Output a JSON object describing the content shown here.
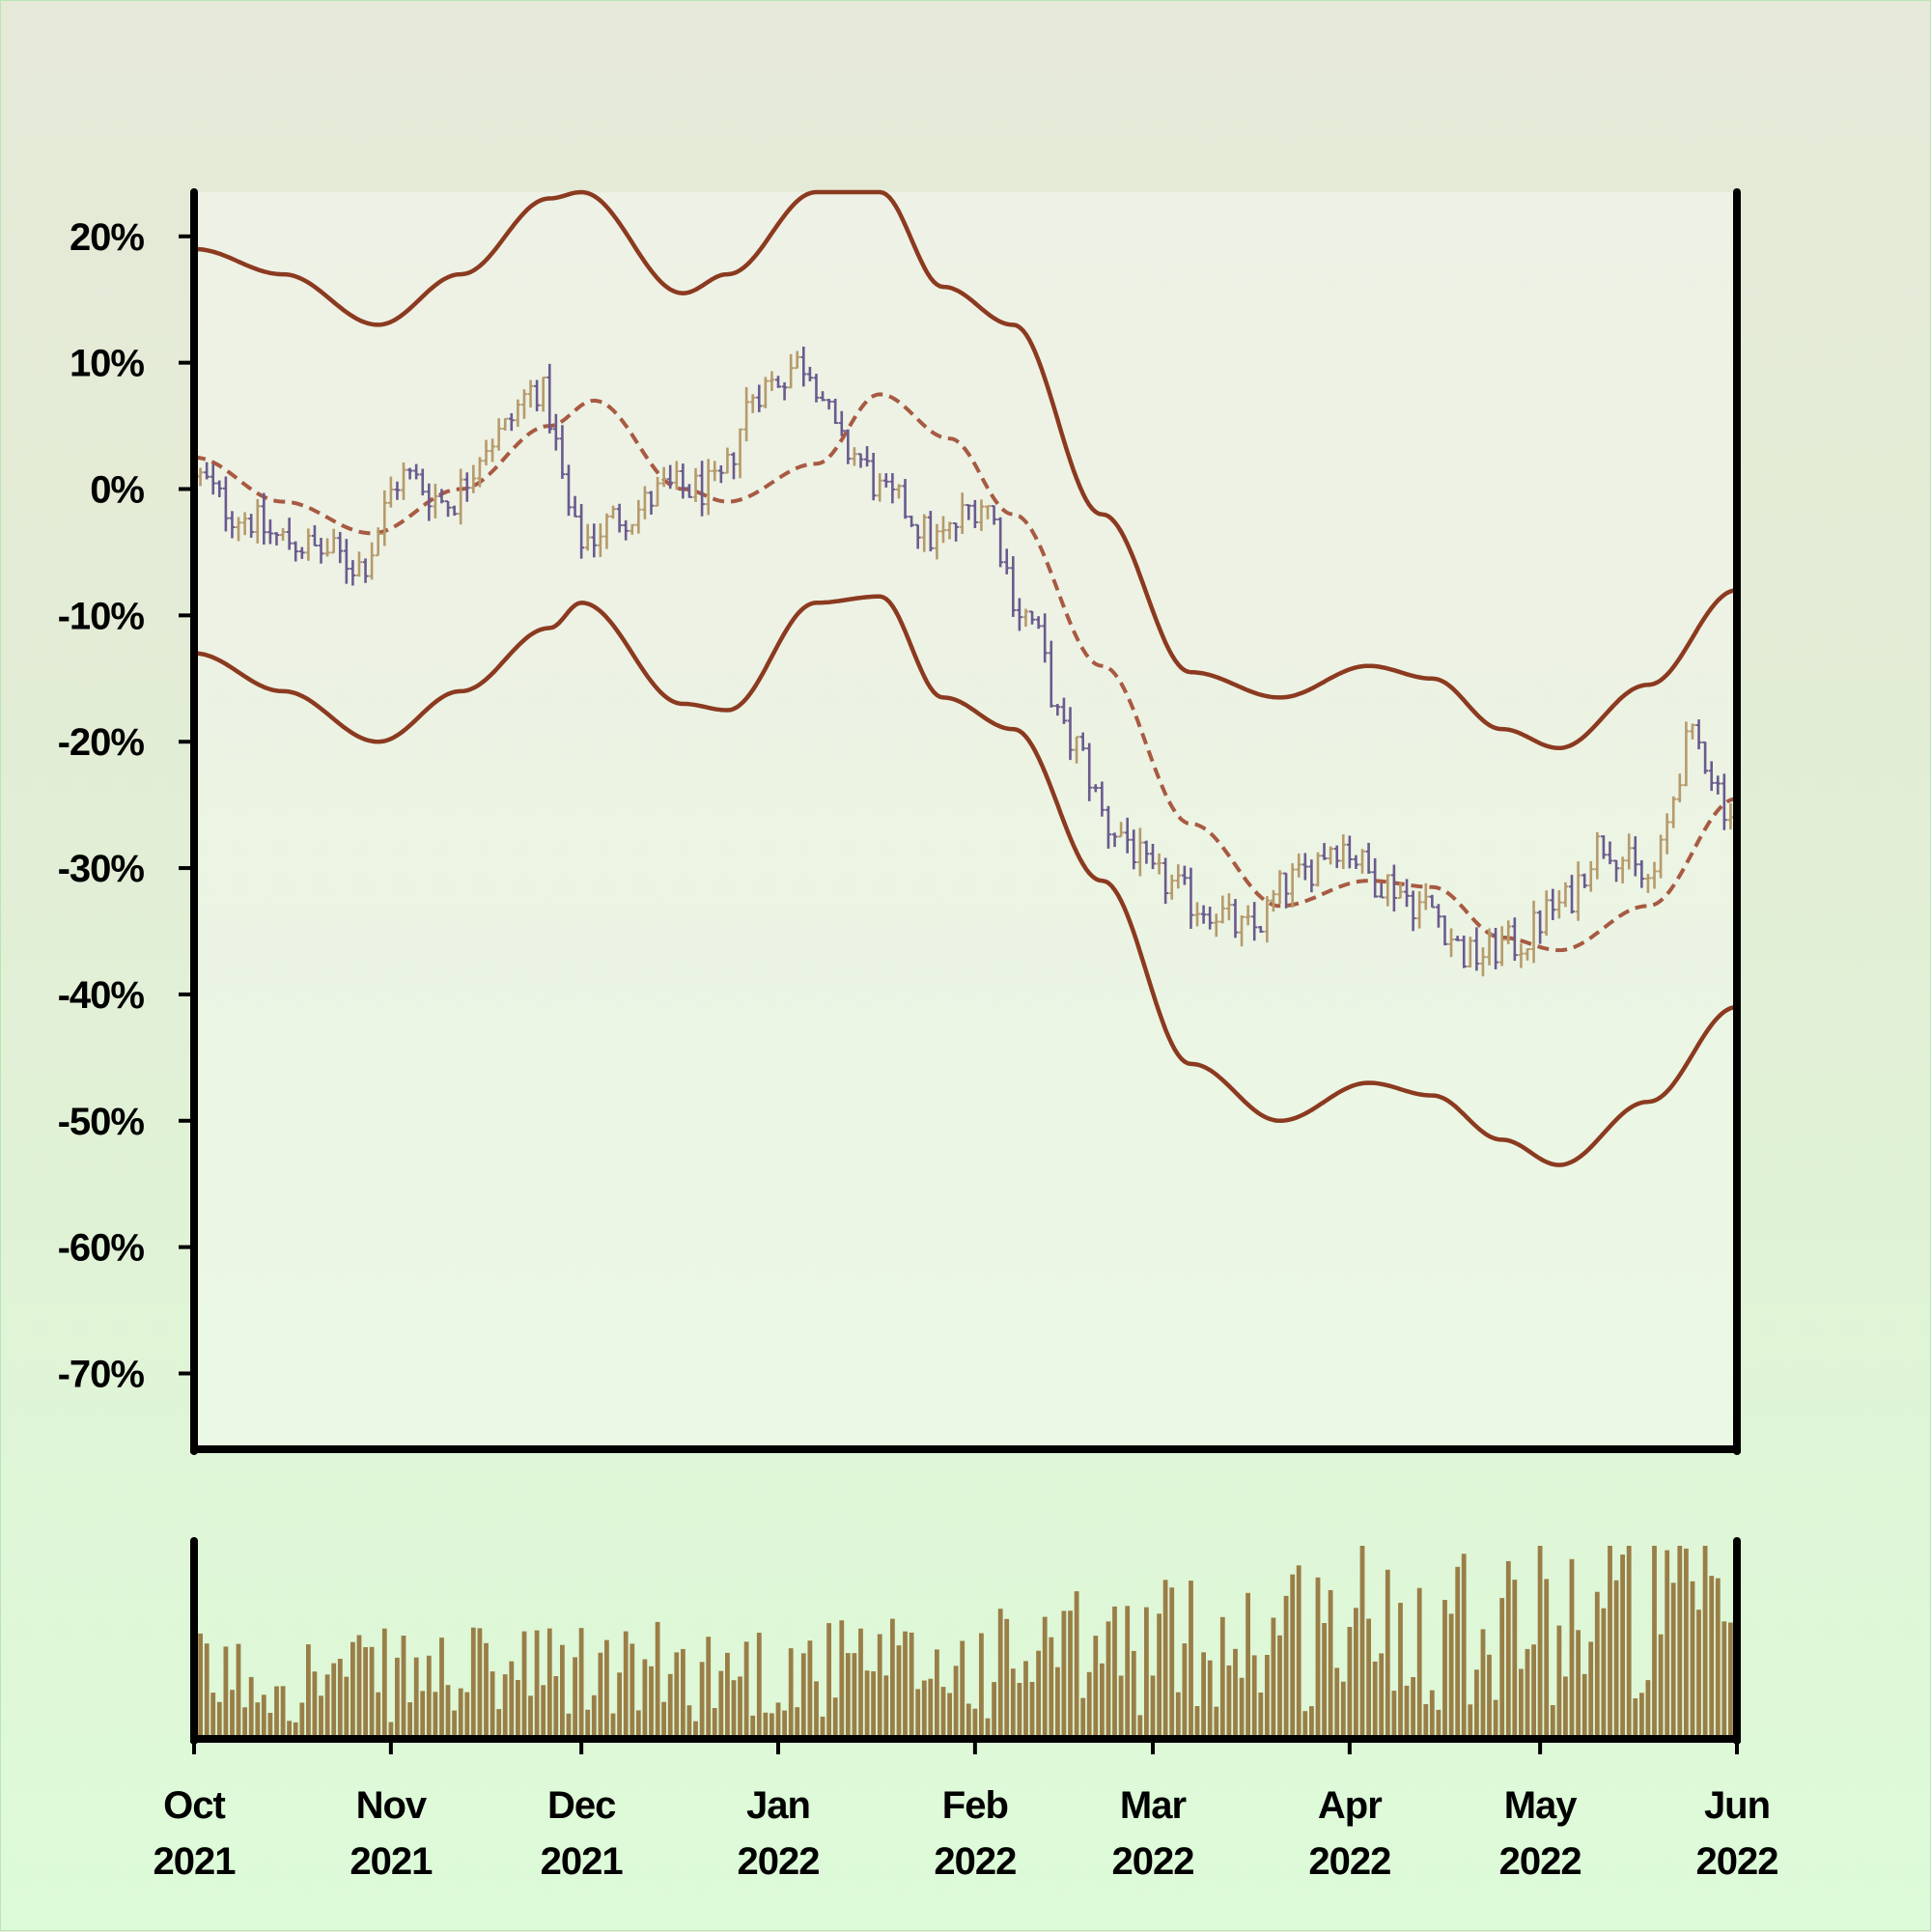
{
  "chart_data": {
    "type": "candlestick",
    "y_axis": {
      "ticks": [
        "20%",
        "10%",
        "0%",
        "-10%",
        "-20%",
        "-30%",
        "-40%",
        "-50%",
        "-60%",
        "-70%"
      ],
      "tick_values": [
        20,
        10,
        0,
        -10,
        -20,
        -30,
        -40,
        -50,
        -60,
        -70
      ],
      "range": [
        -76,
        23.5
      ],
      "unit": "%"
    },
    "x_axis": {
      "ticks": [
        {
          "month": "Oct",
          "year": "2021",
          "date": "2021-10-01"
        },
        {
          "month": "Nov",
          "year": "2021",
          "date": "2021-11-01"
        },
        {
          "month": "Dec",
          "year": "2021",
          "date": "2021-12-01"
        },
        {
          "month": "Jan",
          "year": "2022",
          "date": "2022-01-01"
        },
        {
          "month": "Feb",
          "year": "2022",
          "date": "2022-02-01"
        },
        {
          "month": "Mar",
          "year": "2022",
          "date": "2022-03-01"
        },
        {
          "month": "Apr",
          "year": "2022",
          "date": "2022-04-01"
        },
        {
          "month": "May",
          "year": "2022",
          "date": "2022-05-01"
        },
        {
          "month": "Jun",
          "year": "2022",
          "date": "2022-06-01"
        }
      ],
      "range": [
        "2021-10-01",
        "2022-06-01"
      ]
    },
    "price_trend": {
      "dates": [
        "2021-10-01",
        "2021-10-08",
        "2021-10-15",
        "2021-10-22",
        "2021-10-27",
        "2021-11-03",
        "2021-11-10",
        "2021-11-17",
        "2021-11-24",
        "2021-12-01",
        "2021-12-08",
        "2021-12-15",
        "2021-12-22",
        "2021-12-29",
        "2022-01-05",
        "2022-01-12",
        "2022-01-19",
        "2022-01-26",
        "2022-02-02",
        "2022-02-09",
        "2022-02-16",
        "2022-02-23",
        "2022-03-02",
        "2022-03-09",
        "2022-03-16",
        "2022-03-23",
        "2022-03-30",
        "2022-04-06",
        "2022-04-13",
        "2022-04-20",
        "2022-04-27",
        "2022-05-04",
        "2022-05-11",
        "2022-05-18",
        "2022-05-25",
        "2022-06-01"
      ],
      "close": [
        1,
        -2,
        -4,
        -5,
        -6,
        1,
        -1,
        4,
        8,
        -4,
        -2,
        0,
        0,
        8,
        10,
        3,
        -1,
        -4,
        -1,
        -10,
        -20,
        -27,
        -31,
        -33,
        -35,
        -31,
        -28,
        -31,
        -33,
        -37,
        -36,
        -33,
        -28,
        -31,
        -20,
        -26
      ]
    },
    "series": [
      {
        "name": "",
        "style": "dashed",
        "dates": [
          "2021-10-01",
          "2021-10-15",
          "2021-10-29",
          "2021-11-12",
          "2021-11-26",
          "2021-12-03",
          "2021-12-17",
          "2021-12-24",
          "2022-01-07",
          "2022-01-17",
          "2022-01-28",
          "2022-02-07",
          "2022-02-21",
          "2022-03-07",
          "2022-03-21",
          "2022-04-04",
          "2022-04-14",
          "2022-04-25",
          "2022-05-04",
          "2022-05-18",
          "2022-06-01"
        ],
        "values": [
          2.5,
          -1,
          -3.5,
          0,
          5,
          7,
          0,
          -1,
          2,
          7.5,
          4,
          -2,
          -14,
          -26.5,
          -33,
          -31,
          -31.5,
          -35.5,
          -36.5,
          -33,
          -24.5
        ]
      },
      {
        "name": "",
        "style": "solid",
        "dates": [
          "2021-10-01",
          "2021-10-15",
          "2021-10-30",
          "2021-11-12",
          "2021-11-26",
          "2021-12-01",
          "2021-12-17",
          "2021-12-24",
          "2022-01-07",
          "2022-01-17",
          "2022-01-27",
          "2022-02-07",
          "2022-02-21",
          "2022-03-07",
          "2022-03-21",
          "2022-04-04",
          "2022-04-14",
          "2022-04-25",
          "2022-05-04",
          "2022-05-18",
          "2022-06-01"
        ],
        "values": [
          19,
          17,
          13,
          17,
          23,
          23.5,
          15.5,
          17,
          23.5,
          23.5,
          16,
          13,
          -2,
          -14.5,
          -16.5,
          -14,
          -15,
          -19,
          -20.5,
          -15.5,
          -8
        ]
      },
      {
        "name": "",
        "style": "solid",
        "dates": [
          "2021-10-01",
          "2021-10-15",
          "2021-10-30",
          "2021-11-12",
          "2021-11-26",
          "2021-12-01",
          "2021-12-17",
          "2021-12-24",
          "2022-01-07",
          "2022-01-17",
          "2022-01-27",
          "2022-02-07",
          "2022-02-21",
          "2022-03-07",
          "2022-03-21",
          "2022-04-04",
          "2022-04-14",
          "2022-04-25",
          "2022-05-04",
          "2022-05-18",
          "2022-06-01"
        ],
        "values": [
          -13,
          -16,
          -20,
          -16,
          -11,
          -9,
          -17,
          -17.5,
          -9,
          -8.5,
          -16.5,
          -19,
          -31,
          -45.5,
          -50,
          -47,
          -48,
          -51.5,
          -53.5,
          -48.5,
          -41
        ]
      }
    ],
    "volume": {
      "label": "",
      "scale": "relative"
    },
    "colors": {
      "up": "#b69a6c",
      "down": "#6a5a8e",
      "bands": "#8b3a20",
      "average": "#a85a42",
      "volume": "#9a7e47",
      "axis": "#000000"
    },
    "grid": false,
    "legend": "none"
  }
}
